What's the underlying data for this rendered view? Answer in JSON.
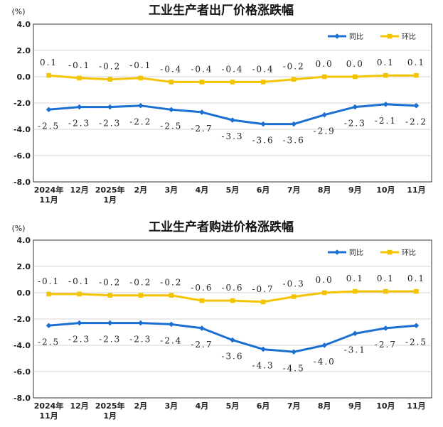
{
  "chart_data": [
    {
      "type": "line",
      "title": "工业生产者出厂价格涨跌幅",
      "unit": "(%)",
      "ylim": [
        -8.0,
        4.0
      ],
      "yticks": [
        "4.0",
        "2.0",
        "0.0",
        "-2.0",
        "-4.0",
        "-6.0",
        "-8.0"
      ],
      "categories": [
        [
          "2024年",
          "11月"
        ],
        [
          "12月"
        ],
        [
          "2025年",
          "1月"
        ],
        [
          "2月"
        ],
        [
          "3月"
        ],
        [
          "4月"
        ],
        [
          "5月"
        ],
        [
          "6月"
        ],
        [
          "7月"
        ],
        [
          "8月"
        ],
        [
          "9月"
        ],
        [
          "10月"
        ],
        [
          "11月"
        ]
      ],
      "legend_position": "top-right",
      "series": [
        {
          "name": "同比",
          "color": "#1a6fd1",
          "values": [
            -2.5,
            -2.3,
            -2.3,
            -2.2,
            -2.5,
            -2.7,
            -3.3,
            -3.6,
            -3.6,
            -2.9,
            -2.3,
            -2.1,
            -2.2
          ],
          "labels": [
            "-2.5",
            "-2.3",
            "-2.3",
            "-2.2",
            "-2.5",
            "-2.7",
            "-3.3",
            "-3.6",
            "-3.6",
            "-2.9",
            "-2.3",
            "-2.1",
            "-2.2"
          ],
          "label_position": "below"
        },
        {
          "name": "环比",
          "color": "#f5c400",
          "values": [
            0.1,
            -0.1,
            -0.2,
            -0.1,
            -0.4,
            -0.4,
            -0.4,
            -0.4,
            -0.2,
            0.0,
            0.0,
            0.1,
            0.1
          ],
          "labels": [
            "0.1",
            "-0.1",
            "-0.2",
            "-0.1",
            "-0.4",
            "-0.4",
            "-0.4",
            "-0.4",
            "-0.2",
            "0.0",
            "0.0",
            "0.1",
            "0.1"
          ],
          "label_position": "above"
        }
      ]
    },
    {
      "type": "line",
      "title": "工业生产者购进价格涨跌幅",
      "unit": "(%)",
      "ylim": [
        -8.0,
        4.0
      ],
      "yticks": [
        "4.0",
        "2.0",
        "0.0",
        "-2.0",
        "-4.0",
        "-6.0",
        "-8.0"
      ],
      "categories": [
        [
          "2024年",
          "11月"
        ],
        [
          "12月"
        ],
        [
          "2025年",
          "1月"
        ],
        [
          "2月"
        ],
        [
          "3月"
        ],
        [
          "4月"
        ],
        [
          "5月"
        ],
        [
          "6月"
        ],
        [
          "7月"
        ],
        [
          "8月"
        ],
        [
          "9月"
        ],
        [
          "10月"
        ],
        [
          "11月"
        ]
      ],
      "legend_position": "top-right",
      "series": [
        {
          "name": "同比",
          "color": "#1a6fd1",
          "values": [
            -2.5,
            -2.3,
            -2.3,
            -2.3,
            -2.4,
            -2.7,
            -3.6,
            -4.3,
            -4.5,
            -4.0,
            -3.1,
            -2.7,
            -2.5
          ],
          "labels": [
            "-2.5",
            "-2.3",
            "-2.3",
            "-2.3",
            "-2.4",
            "-2.7",
            "-3.6",
            "-4.3",
            "-4.5",
            "-4.0",
            "-3.1",
            "-2.7",
            "-2.5"
          ],
          "label_position": "below"
        },
        {
          "name": "环比",
          "color": "#f5c400",
          "values": [
            -0.1,
            -0.1,
            -0.2,
            -0.2,
            -0.2,
            -0.6,
            -0.6,
            -0.7,
            -0.3,
            0.0,
            0.1,
            0.1,
            0.1
          ],
          "labels": [
            "-0.1",
            "-0.1",
            "-0.2",
            "-0.2",
            "-0.2",
            "-0.6",
            "-0.6",
            "-0.7",
            "-0.3",
            "0.0",
            "0.1",
            "0.1",
            "0.1"
          ],
          "label_position": "above"
        }
      ]
    }
  ]
}
